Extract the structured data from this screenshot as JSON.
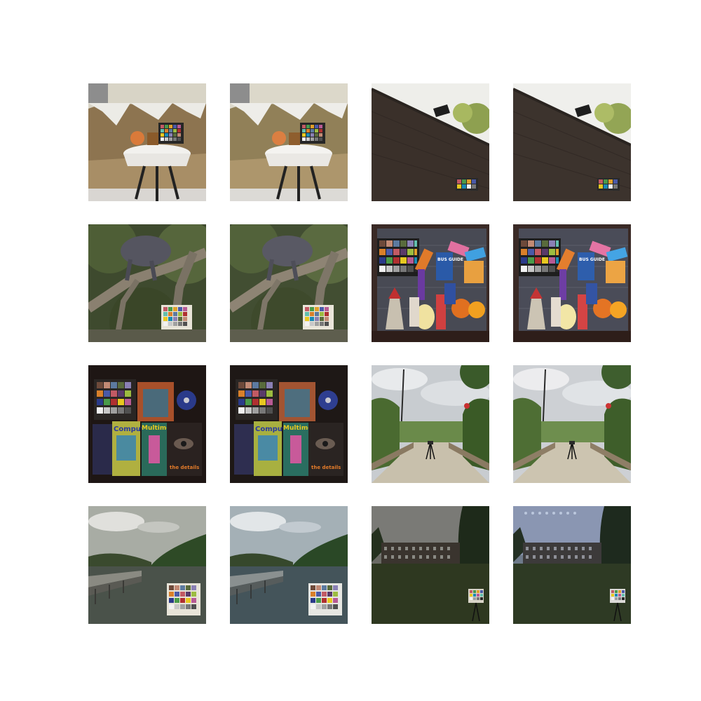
{
  "grid": {
    "rows": 4,
    "cols": 4,
    "background": "#ffffff"
  },
  "scenes": [
    {
      "id": "living-room",
      "label": "lounge with table and color checker"
    },
    {
      "id": "brick-wall",
      "label": "brick wall with lamp"
    },
    {
      "id": "tree-sculpture",
      "label": "sculpture in tree"
    },
    {
      "id": "toys",
      "label": "toys and color checker"
    },
    {
      "id": "magazines",
      "label": "magazines and color checker"
    },
    {
      "id": "garden-path",
      "label": "garden walkway"
    },
    {
      "id": "waterfront",
      "label": "river with pier"
    },
    {
      "id": "terrace-houses",
      "label": "terraced houses and lawn"
    }
  ],
  "magazine_text": {
    "computer": "Computer",
    "multimedia": "Multimedia",
    "details": "the details",
    "bus_guide": "BUS GUIDE"
  },
  "colors": {
    "checker": [
      "#6e4a3a",
      "#c28a74",
      "#5c7aa0",
      "#596b3c",
      "#8a80b4",
      "#63bfae",
      "#d9802a",
      "#4a5aa8",
      "#c25a64",
      "#5a3a6a",
      "#9cbc40",
      "#e0a02a",
      "#2a3a8a",
      "#4a9a4a",
      "#b03030",
      "#e8c820",
      "#b85a94",
      "#1a8ab4",
      "#f2f2f2",
      "#c8c8c8",
      "#a0a0a0",
      "#787878",
      "#505050",
      "#282828"
    ]
  }
}
